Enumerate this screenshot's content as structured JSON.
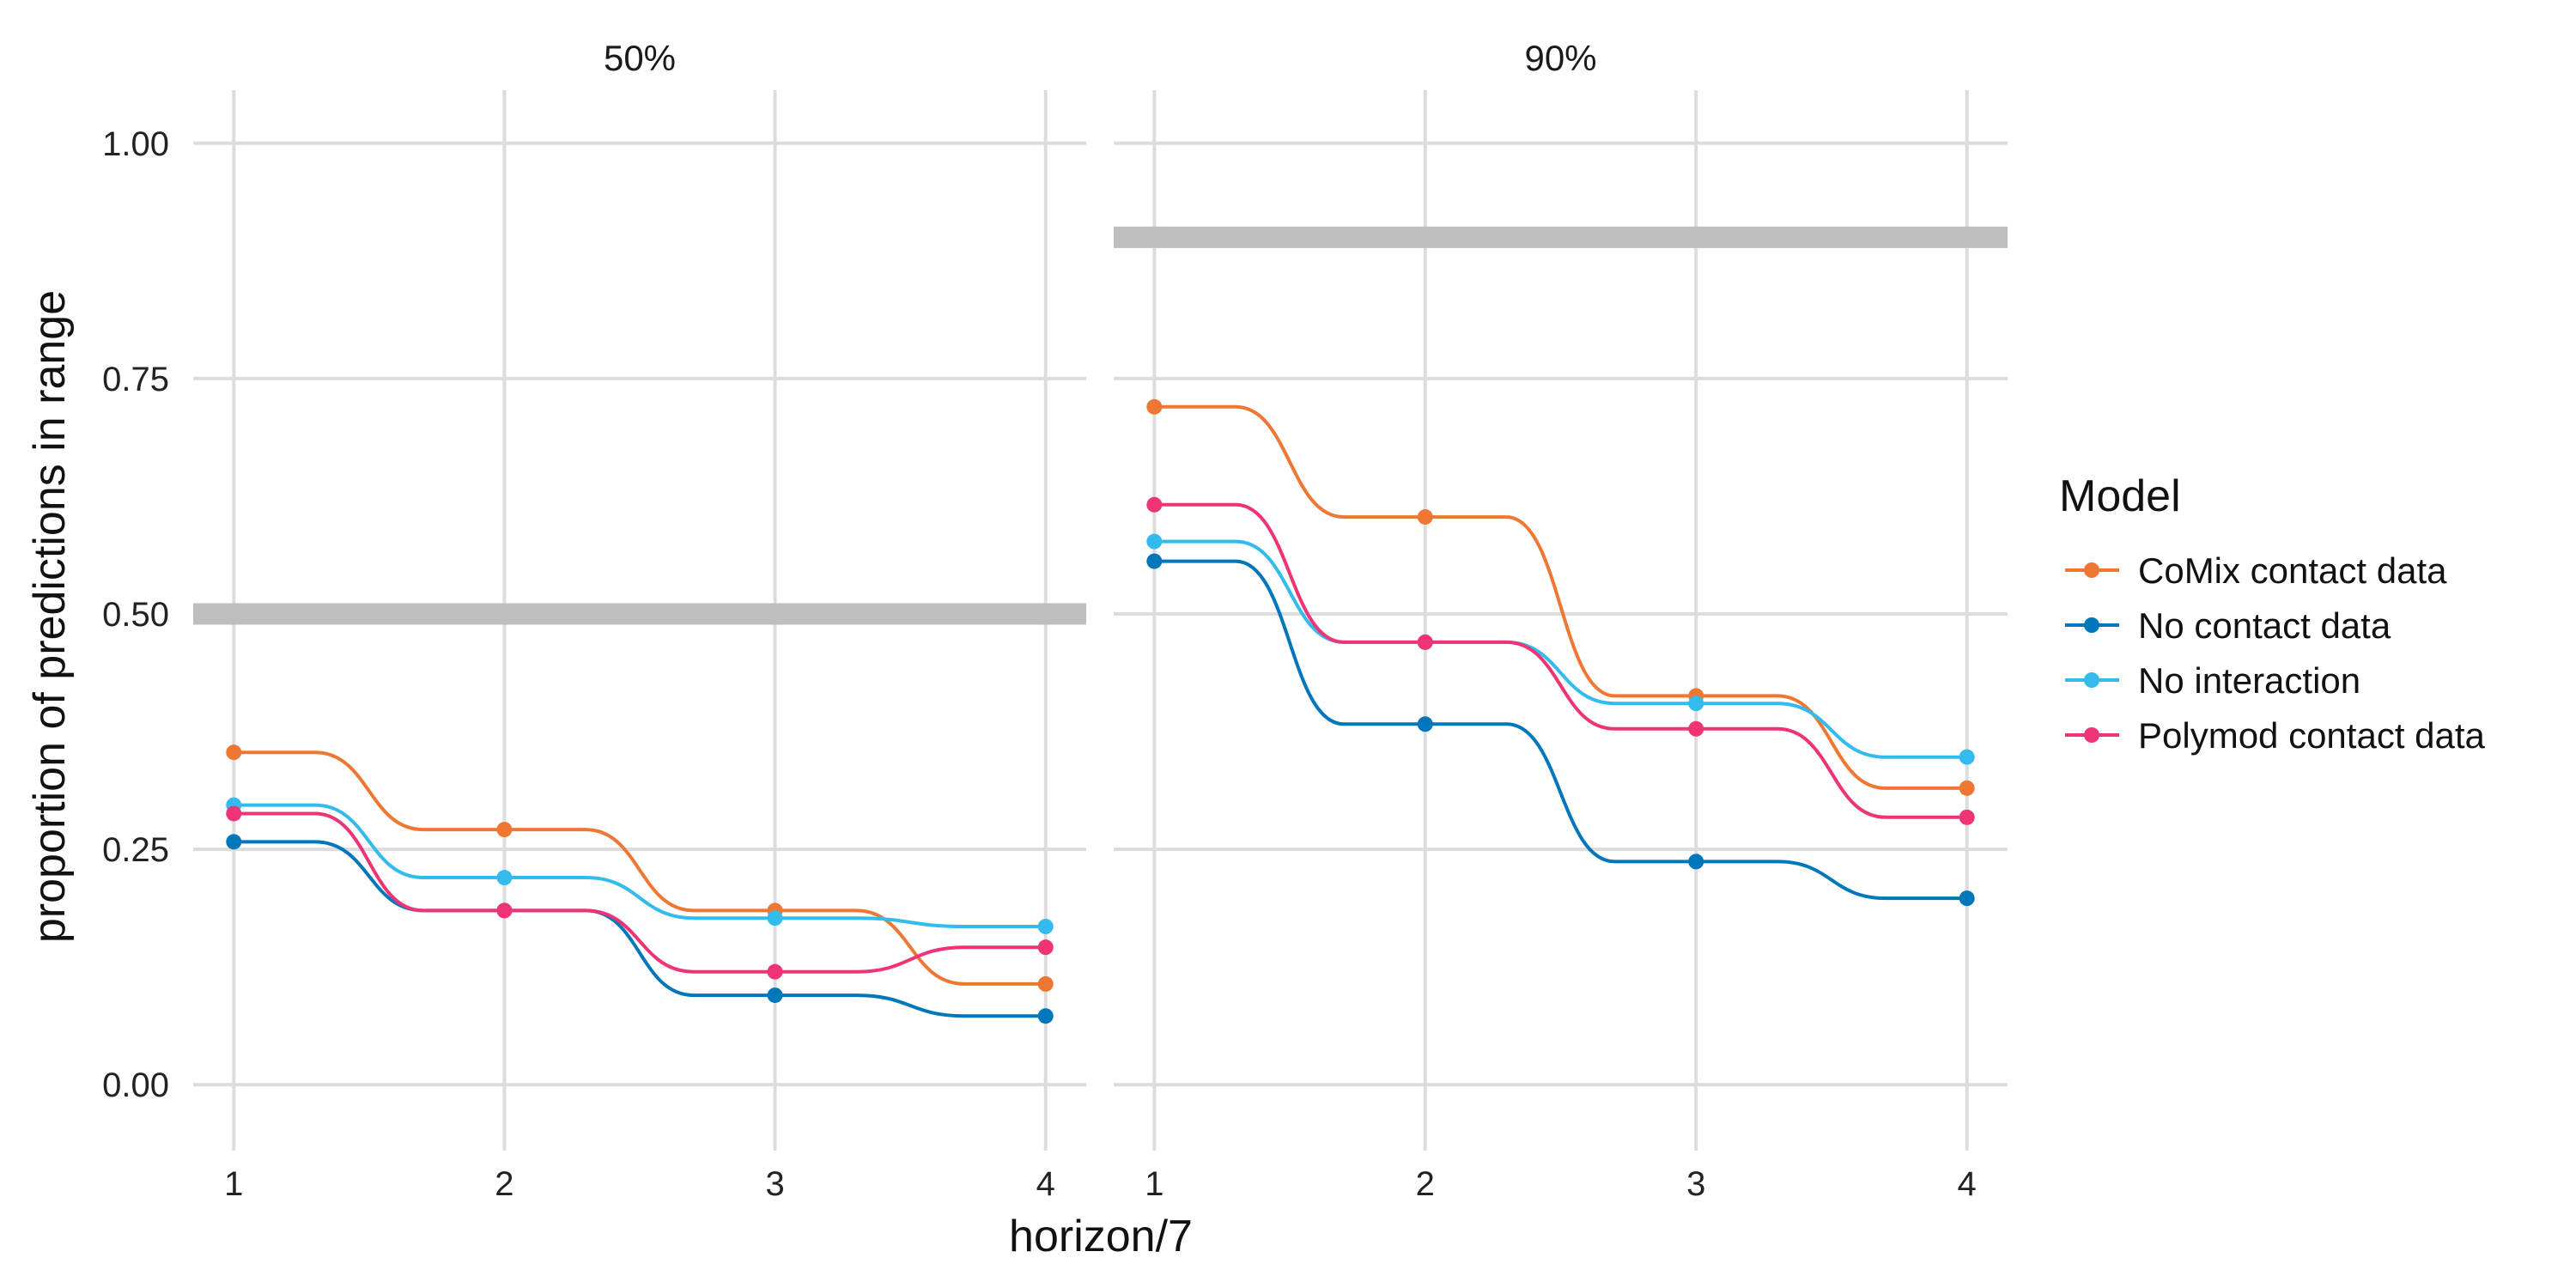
{
  "chart_data": {
    "type": "line",
    "xlabel": "horizon/7",
    "ylabel": "proportion of predictions in range",
    "x": [
      1,
      2,
      3,
      4
    ],
    "xlim": [
      0.85,
      4.15
    ],
    "ylim": [
      -0.07,
      1.07
    ],
    "yticks": [
      0.0,
      0.25,
      0.5,
      0.75,
      1.0
    ],
    "ytick_labels": [
      "0.00",
      "0.25",
      "0.50",
      "0.75",
      "1.00"
    ],
    "xtick_labels": [
      "1",
      "2",
      "3",
      "4"
    ],
    "grid": true,
    "legend": {
      "title": "Model",
      "position": "right",
      "entries": [
        "CoMix contact data",
        "No contact data",
        "No interaction",
        "Polymod contact data"
      ]
    },
    "colors": {
      "CoMix contact data": "#ee7733",
      "No contact data": "#0077bb",
      "No interaction": "#33bbee",
      "Polymod contact data": "#ee3377",
      "target_band": "#bebebe"
    },
    "panels": [
      {
        "title": "50%",
        "target": 0.5,
        "series": [
          {
            "name": "CoMix contact data",
            "values": [
              0.353,
              0.271,
              0.185,
              0.107
            ]
          },
          {
            "name": "No contact data",
            "values": [
              0.258,
              0.185,
              0.095,
              0.073
            ]
          },
          {
            "name": "No interaction",
            "values": [
              0.297,
              0.22,
              0.177,
              0.168
            ]
          },
          {
            "name": "Polymod contact data",
            "values": [
              0.288,
              0.185,
              0.12,
              0.146
            ]
          }
        ]
      },
      {
        "title": "90%",
        "target": 0.9,
        "series": [
          {
            "name": "CoMix contact data",
            "values": [
              0.72,
              0.603,
              0.413,
              0.315
            ]
          },
          {
            "name": "No contact data",
            "values": [
              0.556,
              0.383,
              0.237,
              0.198
            ]
          },
          {
            "name": "No interaction",
            "values": [
              0.577,
              0.47,
              0.405,
              0.348
            ]
          },
          {
            "name": "Polymod contact data",
            "values": [
              0.616,
              0.47,
              0.378,
              0.284
            ]
          }
        ]
      }
    ]
  }
}
